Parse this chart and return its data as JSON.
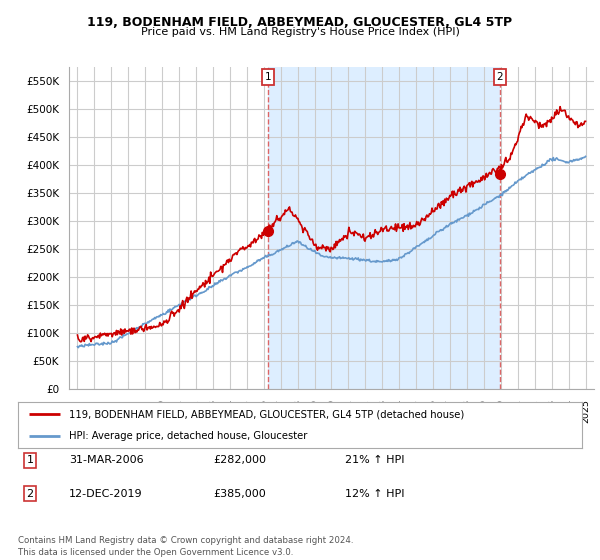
{
  "title": "119, BODENHAM FIELD, ABBEYMEAD, GLOUCESTER, GL4 5TP",
  "subtitle": "Price paid vs. HM Land Registry's House Price Index (HPI)",
  "red_label": "119, BODENHAM FIELD, ABBEYMEAD, GLOUCESTER, GL4 5TP (detached house)",
  "blue_label": "HPI: Average price, detached house, Gloucester",
  "annotation1_num": "1",
  "annotation1_date": "31-MAR-2006",
  "annotation1_price": "£282,000",
  "annotation1_hpi": "21% ↑ HPI",
  "annotation2_num": "2",
  "annotation2_date": "12-DEC-2019",
  "annotation2_price": "£385,000",
  "annotation2_hpi": "12% ↑ HPI",
  "footnote": "Contains HM Land Registry data © Crown copyright and database right 2024.\nThis data is licensed under the Open Government Licence v3.0.",
  "ylim": [
    0,
    575000
  ],
  "ytick_vals": [
    0,
    50000,
    100000,
    150000,
    200000,
    250000,
    300000,
    350000,
    400000,
    450000,
    500000,
    550000
  ],
  "ytick_labels": [
    "£0",
    "£50K",
    "£100K",
    "£150K",
    "£200K",
    "£250K",
    "£300K",
    "£350K",
    "£400K",
    "£450K",
    "£500K",
    "£550K"
  ],
  "background_color": "#ffffff",
  "grid_color": "#cccccc",
  "shade_color": "#ddeeff",
  "red_color": "#cc0000",
  "blue_color": "#6699cc",
  "vline_color": "#dd6666",
  "sale1_x": 2006.25,
  "sale1_y": 282000,
  "sale2_x": 2019.95,
  "sale2_y": 385000,
  "xmin": 1994.5,
  "xmax": 2025.5
}
